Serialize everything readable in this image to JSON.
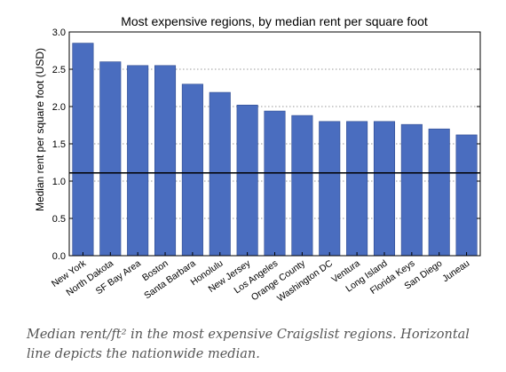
{
  "chart_data": {
    "type": "bar",
    "title": "Most expensive regions, by median rent per square foot",
    "xlabel": "",
    "ylabel": "Median rent per square foot (USD)",
    "categories": [
      "New York",
      "North Dakota",
      "SF Bay Area",
      "Boston",
      "Santa Barbara",
      "Honolulu",
      "New Jersey",
      "Los Angeles",
      "Orange County",
      "Washington DC",
      "Ventura",
      "Long Island",
      "Florida Keys",
      "San Diego",
      "Juneau"
    ],
    "values": [
      2.85,
      2.6,
      2.55,
      2.55,
      2.3,
      2.19,
      2.02,
      1.94,
      1.88,
      1.8,
      1.8,
      1.8,
      1.76,
      1.7,
      1.62
    ],
    "ylim": [
      0,
      3
    ],
    "yticks": [
      "0.0",
      "0.5",
      "1.0",
      "1.5",
      "2.0",
      "2.5",
      "3.0"
    ],
    "grid": "horizontal dotted",
    "reference_line": {
      "value": 1.11
    },
    "bar_color": "#4a6dbf"
  },
  "caption": "Median rent/ft² in the most expensive Craigslist regions. Horizontal line depicts the nationwide median."
}
